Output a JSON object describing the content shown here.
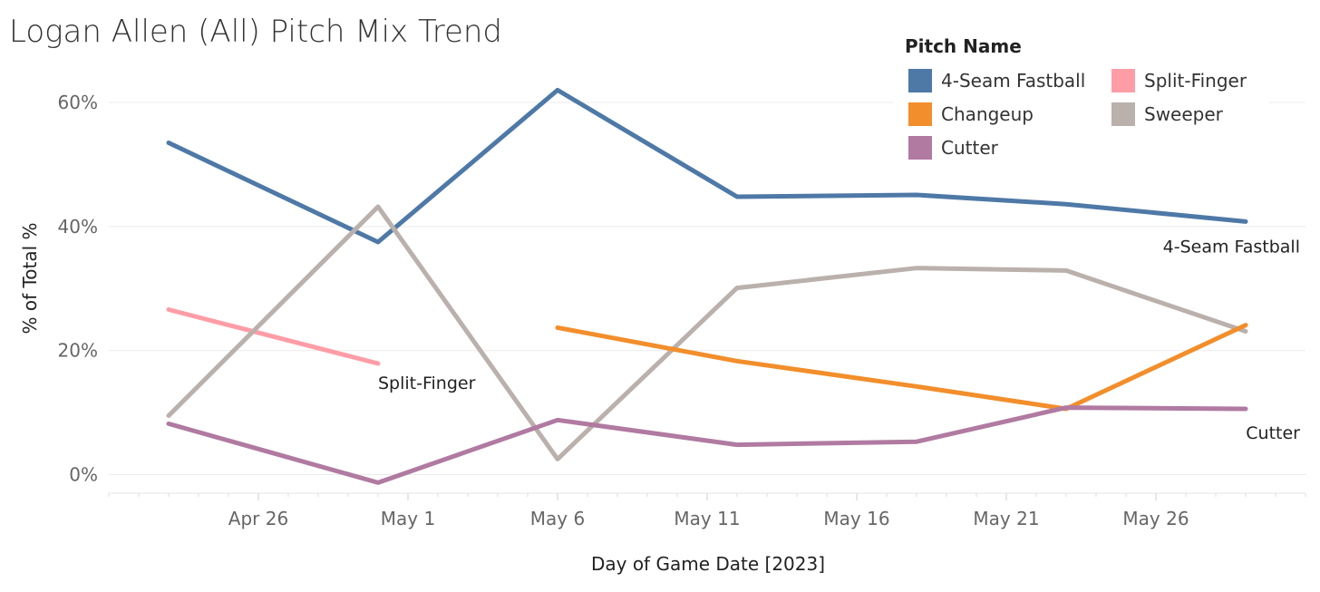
{
  "colors": {
    "4-Seam Fastball": "#4e79a7",
    "Changeup": "#f28e2b",
    "Cutter": "#b07aa1",
    "Split-Finger": "#ff9da7",
    "Sweeper": "#bab0ac",
    "grid": "#ebebeb"
  },
  "chart_data": {
    "type": "line",
    "title": "Logan Allen (All) Pitch Mix Trend",
    "xlabel": "Day of Game Date [2023]",
    "ylabel": "% of Total %",
    "x_ticks": [
      {
        "label": "Apr 26",
        "day": 26
      },
      {
        "label": "May 1",
        "day": 31
      },
      {
        "label": "May 6",
        "day": 36
      },
      {
        "label": "May 11",
        "day": 41
      },
      {
        "label": "May 16",
        "day": 46
      },
      {
        "label": "May 21",
        "day": 51
      },
      {
        "label": "May 26",
        "day": 56
      }
    ],
    "y_ticks": [
      {
        "label": "0%",
        "value": 0
      },
      {
        "label": "20%",
        "value": 20
      },
      {
        "label": "40%",
        "value": 40
      },
      {
        "label": "60%",
        "value": 60
      }
    ],
    "xlim": [
      21,
      61
    ],
    "ylim": [
      -3,
      66
    ],
    "grid": true,
    "legend_title": "Pitch Name",
    "legend_position": "top-right",
    "series": [
      {
        "name": "4-Seam Fastball",
        "end_label": "4-Seam Fastball",
        "x": [
          23,
          30,
          36,
          42,
          48,
          53,
          59
        ],
        "values": [
          53.5,
          37.5,
          62.0,
          44.8,
          45.1,
          43.6,
          40.8
        ]
      },
      {
        "name": "Split-Finger",
        "end_label": "Split-Finger",
        "x": [
          23,
          30
        ],
        "values": [
          26.6,
          17.9
        ]
      },
      {
        "name": "Sweeper",
        "x": [
          23,
          30,
          36,
          42,
          48,
          53,
          59
        ],
        "values": [
          9.5,
          43.2,
          2.5,
          30.1,
          33.3,
          32.9,
          23.1
        ]
      },
      {
        "name": "Changeup",
        "x": [
          36,
          42,
          48,
          53,
          59
        ],
        "values": [
          23.7,
          18.3,
          14.2,
          10.6,
          24.1
        ]
      },
      {
        "name": "Cutter",
        "end_label": "Cutter",
        "x": [
          23,
          30,
          36,
          42,
          48,
          53,
          59
        ],
        "values": [
          8.2,
          -1.3,
          8.8,
          4.8,
          5.3,
          10.8,
          10.6
        ]
      }
    ],
    "legend": [
      {
        "name": "4-Seam Fastball"
      },
      {
        "name": "Split-Finger"
      },
      {
        "name": "Changeup"
      },
      {
        "name": "Sweeper"
      },
      {
        "name": "Cutter"
      }
    ]
  }
}
